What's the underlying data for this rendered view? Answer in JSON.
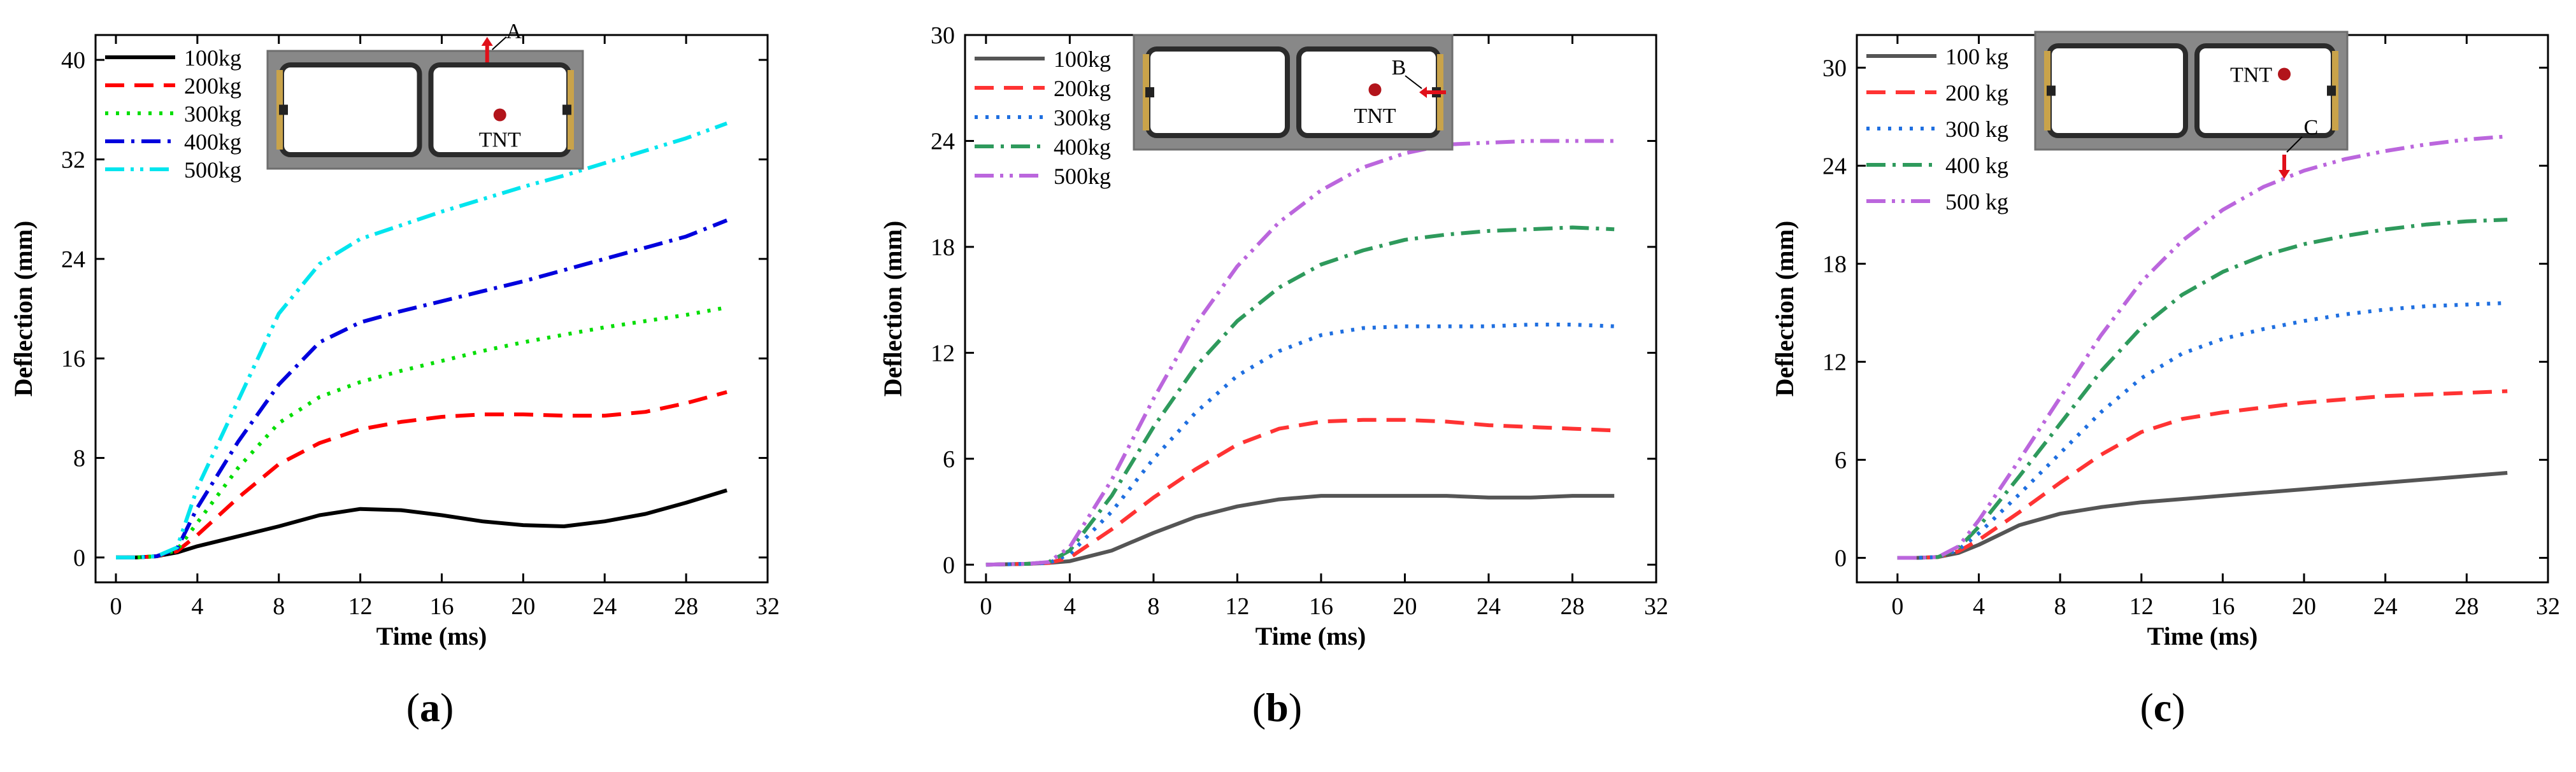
{
  "panels": [
    {
      "caption_open": "(",
      "caption_letter": "a",
      "caption_close": ")",
      "inset": {
        "labels": [
          "A",
          "TNT"
        ]
      },
      "chart_data": {
        "type": "line",
        "title": "",
        "xlabel": "Time (ms)",
        "ylabel": "Deflection (mm)",
        "xlim": [
          -1,
          32
        ],
        "ylim": [
          -2,
          42
        ],
        "xticks": [
          0,
          4,
          8,
          12,
          16,
          20,
          24,
          28,
          32
        ],
        "yticks": [
          0,
          8,
          16,
          24,
          32,
          40
        ],
        "grid": false,
        "legend": "top-left",
        "series": [
          {
            "name": "100kg",
            "color": "#000000",
            "dash": "solid",
            "x": [
              0,
              1,
              2,
              3,
              4,
              6,
              8,
              10,
              12,
              14,
              16,
              18,
              20,
              22,
              24,
              26,
              28,
              30
            ],
            "y": [
              0,
              0,
              0.1,
              0.4,
              0.9,
              1.7,
              2.5,
              3.4,
              3.9,
              3.8,
              3.4,
              2.9,
              2.6,
              2.5,
              2.9,
              3.5,
              4.4,
              5.4
            ]
          },
          {
            "name": "200kg",
            "color": "#ff0000",
            "dash": "dashed",
            "x": [
              0,
              1,
              2,
              3,
              4,
              6,
              8,
              10,
              12,
              14,
              16,
              18,
              20,
              22,
              24,
              26,
              28,
              30
            ],
            "y": [
              0,
              0,
              0.1,
              0.5,
              1.8,
              4.8,
              7.5,
              9.2,
              10.3,
              10.9,
              11.3,
              11.5,
              11.5,
              11.4,
              11.4,
              11.7,
              12.4,
              13.3
            ]
          },
          {
            "name": "300kg",
            "color": "#00dd00",
            "dash": "dotted",
            "x": [
              0,
              1,
              2,
              3,
              4,
              6,
              8,
              10,
              12,
              14,
              16,
              18,
              20,
              22,
              24,
              26,
              28,
              30
            ],
            "y": [
              0,
              0,
              0.1,
              0.6,
              2.8,
              7.2,
              10.8,
              12.9,
              14.1,
              15.0,
              15.8,
              16.6,
              17.3,
              17.9,
              18.5,
              19.0,
              19.5,
              20.1
            ]
          },
          {
            "name": "400kg",
            "color": "#0000dd",
            "dash": "dashdot",
            "x": [
              0,
              1,
              2,
              3,
              4,
              6,
              8,
              10,
              12,
              14,
              16,
              18,
              20,
              22,
              24,
              26,
              28,
              30
            ],
            "y": [
              0,
              0,
              0.1,
              0.7,
              4.0,
              9.3,
              13.9,
              17.3,
              18.9,
              19.8,
              20.6,
              21.4,
              22.2,
              23.1,
              24.0,
              24.9,
              25.8,
              27.1
            ]
          },
          {
            "name": "500kg",
            "color": "#00e5ee",
            "dash": "dashdotdot",
            "x": [
              0,
              1,
              2,
              3,
              4,
              6,
              8,
              10,
              12,
              14,
              16,
              18,
              20,
              22,
              24,
              26,
              28,
              30
            ],
            "y": [
              0,
              0,
              0.1,
              0.8,
              5.6,
              12.6,
              19.6,
              23.6,
              25.6,
              26.7,
              27.8,
              28.8,
              29.8,
              30.7,
              31.7,
              32.7,
              33.7,
              34.9
            ]
          }
        ]
      }
    },
    {
      "caption_open": "(",
      "caption_letter": "b",
      "caption_close": ")",
      "inset": {
        "labels": [
          "B",
          "TNT"
        ]
      },
      "chart_data": {
        "type": "line",
        "title": "",
        "xlabel": "Time (ms)",
        "ylabel": "Deflection (mm)",
        "xlim": [
          -1,
          32
        ],
        "ylim": [
          -1,
          30
        ],
        "xticks": [
          0,
          4,
          8,
          12,
          16,
          20,
          24,
          28,
          32
        ],
        "yticks": [
          0,
          6,
          12,
          18,
          24,
          30
        ],
        "grid": false,
        "legend": "top-left",
        "series": [
          {
            "name": "100kg",
            "color": "#555555",
            "dash": "solid",
            "x": [
              0,
              2,
              3,
              4,
              6,
              8,
              10,
              12,
              14,
              16,
              18,
              20,
              22,
              24,
              26,
              28,
              30
            ],
            "y": [
              0,
              0.05,
              0.1,
              0.2,
              0.8,
              1.8,
              2.7,
              3.3,
              3.7,
              3.9,
              3.9,
              3.9,
              3.9,
              3.8,
              3.8,
              3.9,
              3.9
            ]
          },
          {
            "name": "200kg",
            "color": "#ff3333",
            "dash": "dashed",
            "x": [
              0,
              2,
              3,
              4,
              6,
              8,
              10,
              12,
              14,
              16,
              18,
              20,
              22,
              24,
              26,
              28,
              30
            ],
            "y": [
              0,
              0.05,
              0.1,
              0.4,
              2.0,
              3.8,
              5.4,
              6.8,
              7.7,
              8.1,
              8.2,
              8.2,
              8.1,
              7.9,
              7.8,
              7.7,
              7.6
            ]
          },
          {
            "name": "300kg",
            "color": "#1f6fe0",
            "dash": "dotted",
            "x": [
              0,
              2,
              3,
              4,
              6,
              8,
              10,
              12,
              14,
              16,
              18,
              20,
              22,
              24,
              26,
              28,
              30
            ],
            "y": [
              0,
              0.05,
              0.1,
              0.6,
              3.0,
              6.0,
              8.6,
              10.7,
              12.1,
              13.0,
              13.4,
              13.5,
              13.5,
              13.5,
              13.6,
              13.6,
              13.5
            ]
          },
          {
            "name": "400kg",
            "color": "#2e9a5c",
            "dash": "dashdot",
            "x": [
              0,
              2,
              3,
              4,
              6,
              8,
              10,
              12,
              14,
              16,
              18,
              20,
              22,
              24,
              26,
              28,
              30
            ],
            "y": [
              0,
              0.05,
              0.15,
              0.8,
              3.9,
              7.8,
              11.2,
              13.8,
              15.7,
              17.0,
              17.8,
              18.4,
              18.7,
              18.9,
              19.0,
              19.1,
              19.0
            ]
          },
          {
            "name": "500kg",
            "color": "#bb66dd",
            "dash": "dashdotdot",
            "x": [
              0,
              2,
              3,
              4,
              6,
              8,
              10,
              12,
              14,
              16,
              18,
              20,
              22,
              24,
              26,
              28,
              30
            ],
            "y": [
              0,
              0.05,
              0.15,
              1.0,
              4.8,
              9.4,
              13.6,
              16.9,
              19.4,
              21.2,
              22.5,
              23.3,
              23.8,
              23.9,
              24.0,
              24.0,
              24.0
            ]
          }
        ]
      }
    },
    {
      "caption_open": "(",
      "caption_letter": "c",
      "caption_close": ")",
      "inset": {
        "labels": [
          "TNT",
          "C"
        ]
      },
      "chart_data": {
        "type": "line",
        "title": "",
        "xlabel": "Time (ms)",
        "ylabel": "Deflection (mm)",
        "xlim": [
          -2,
          32
        ],
        "ylim": [
          -1.5,
          32
        ],
        "xticks": [
          0,
          4,
          8,
          12,
          16,
          20,
          24,
          28,
          32
        ],
        "yticks": [
          0,
          6,
          12,
          18,
          24,
          30
        ],
        "grid": false,
        "legend": "top-left",
        "series": [
          {
            "name": "100 kg",
            "color": "#555555",
            "dash": "solid",
            "x": [
              0,
              1,
              2,
              3,
              4,
              6,
              8,
              10,
              12,
              14,
              16,
              18,
              20,
              22,
              24,
              26,
              28,
              30
            ],
            "y": [
              0,
              0,
              0.05,
              0.3,
              0.8,
              2.0,
              2.7,
              3.1,
              3.4,
              3.6,
              3.8,
              4.0,
              4.2,
              4.4,
              4.6,
              4.8,
              5.0,
              5.2
            ]
          },
          {
            "name": "200 kg",
            "color": "#ff3333",
            "dash": "dashed",
            "x": [
              0,
              1,
              2,
              3,
              4,
              6,
              8,
              10,
              12,
              14,
              16,
              18,
              20,
              22,
              24,
              26,
              28,
              30
            ],
            "y": [
              0,
              0,
              0.05,
              0.4,
              1.1,
              2.8,
              4.6,
              6.3,
              7.7,
              8.5,
              8.9,
              9.2,
              9.5,
              9.7,
              9.9,
              10.0,
              10.1,
              10.2
            ]
          },
          {
            "name": "300 kg",
            "color": "#1f6fe0",
            "dash": "dotted",
            "x": [
              0,
              1,
              2,
              3,
              4,
              6,
              8,
              10,
              12,
              14,
              16,
              18,
              20,
              22,
              24,
              26,
              28,
              30
            ],
            "y": [
              0,
              0,
              0.05,
              0.5,
              1.5,
              3.9,
              6.4,
              8.9,
              11.0,
              12.5,
              13.4,
              14.0,
              14.5,
              14.9,
              15.2,
              15.4,
              15.5,
              15.6
            ]
          },
          {
            "name": "400 kg",
            "color": "#2e9a5c",
            "dash": "dashdot",
            "x": [
              0,
              1,
              2,
              3,
              4,
              6,
              8,
              10,
              12,
              14,
              16,
              18,
              20,
              22,
              24,
              26,
              28,
              30
            ],
            "y": [
              0,
              0,
              0.05,
              0.6,
              1.9,
              5.0,
              8.2,
              11.4,
              14.1,
              16.1,
              17.5,
              18.5,
              19.2,
              19.7,
              20.1,
              20.4,
              20.6,
              20.7
            ]
          },
          {
            "name": "500 kg",
            "color": "#bb66dd",
            "dash": "dashdotdot",
            "x": [
              0,
              1,
              2,
              3,
              4,
              6,
              8,
              10,
              12,
              14,
              16,
              18,
              20,
              22,
              24,
              26,
              28,
              30
            ],
            "y": [
              0,
              0,
              0.05,
              0.7,
              2.3,
              6.0,
              9.8,
              13.6,
              16.9,
              19.4,
              21.3,
              22.7,
              23.7,
              24.4,
              24.9,
              25.3,
              25.6,
              25.8
            ]
          }
        ]
      }
    }
  ]
}
